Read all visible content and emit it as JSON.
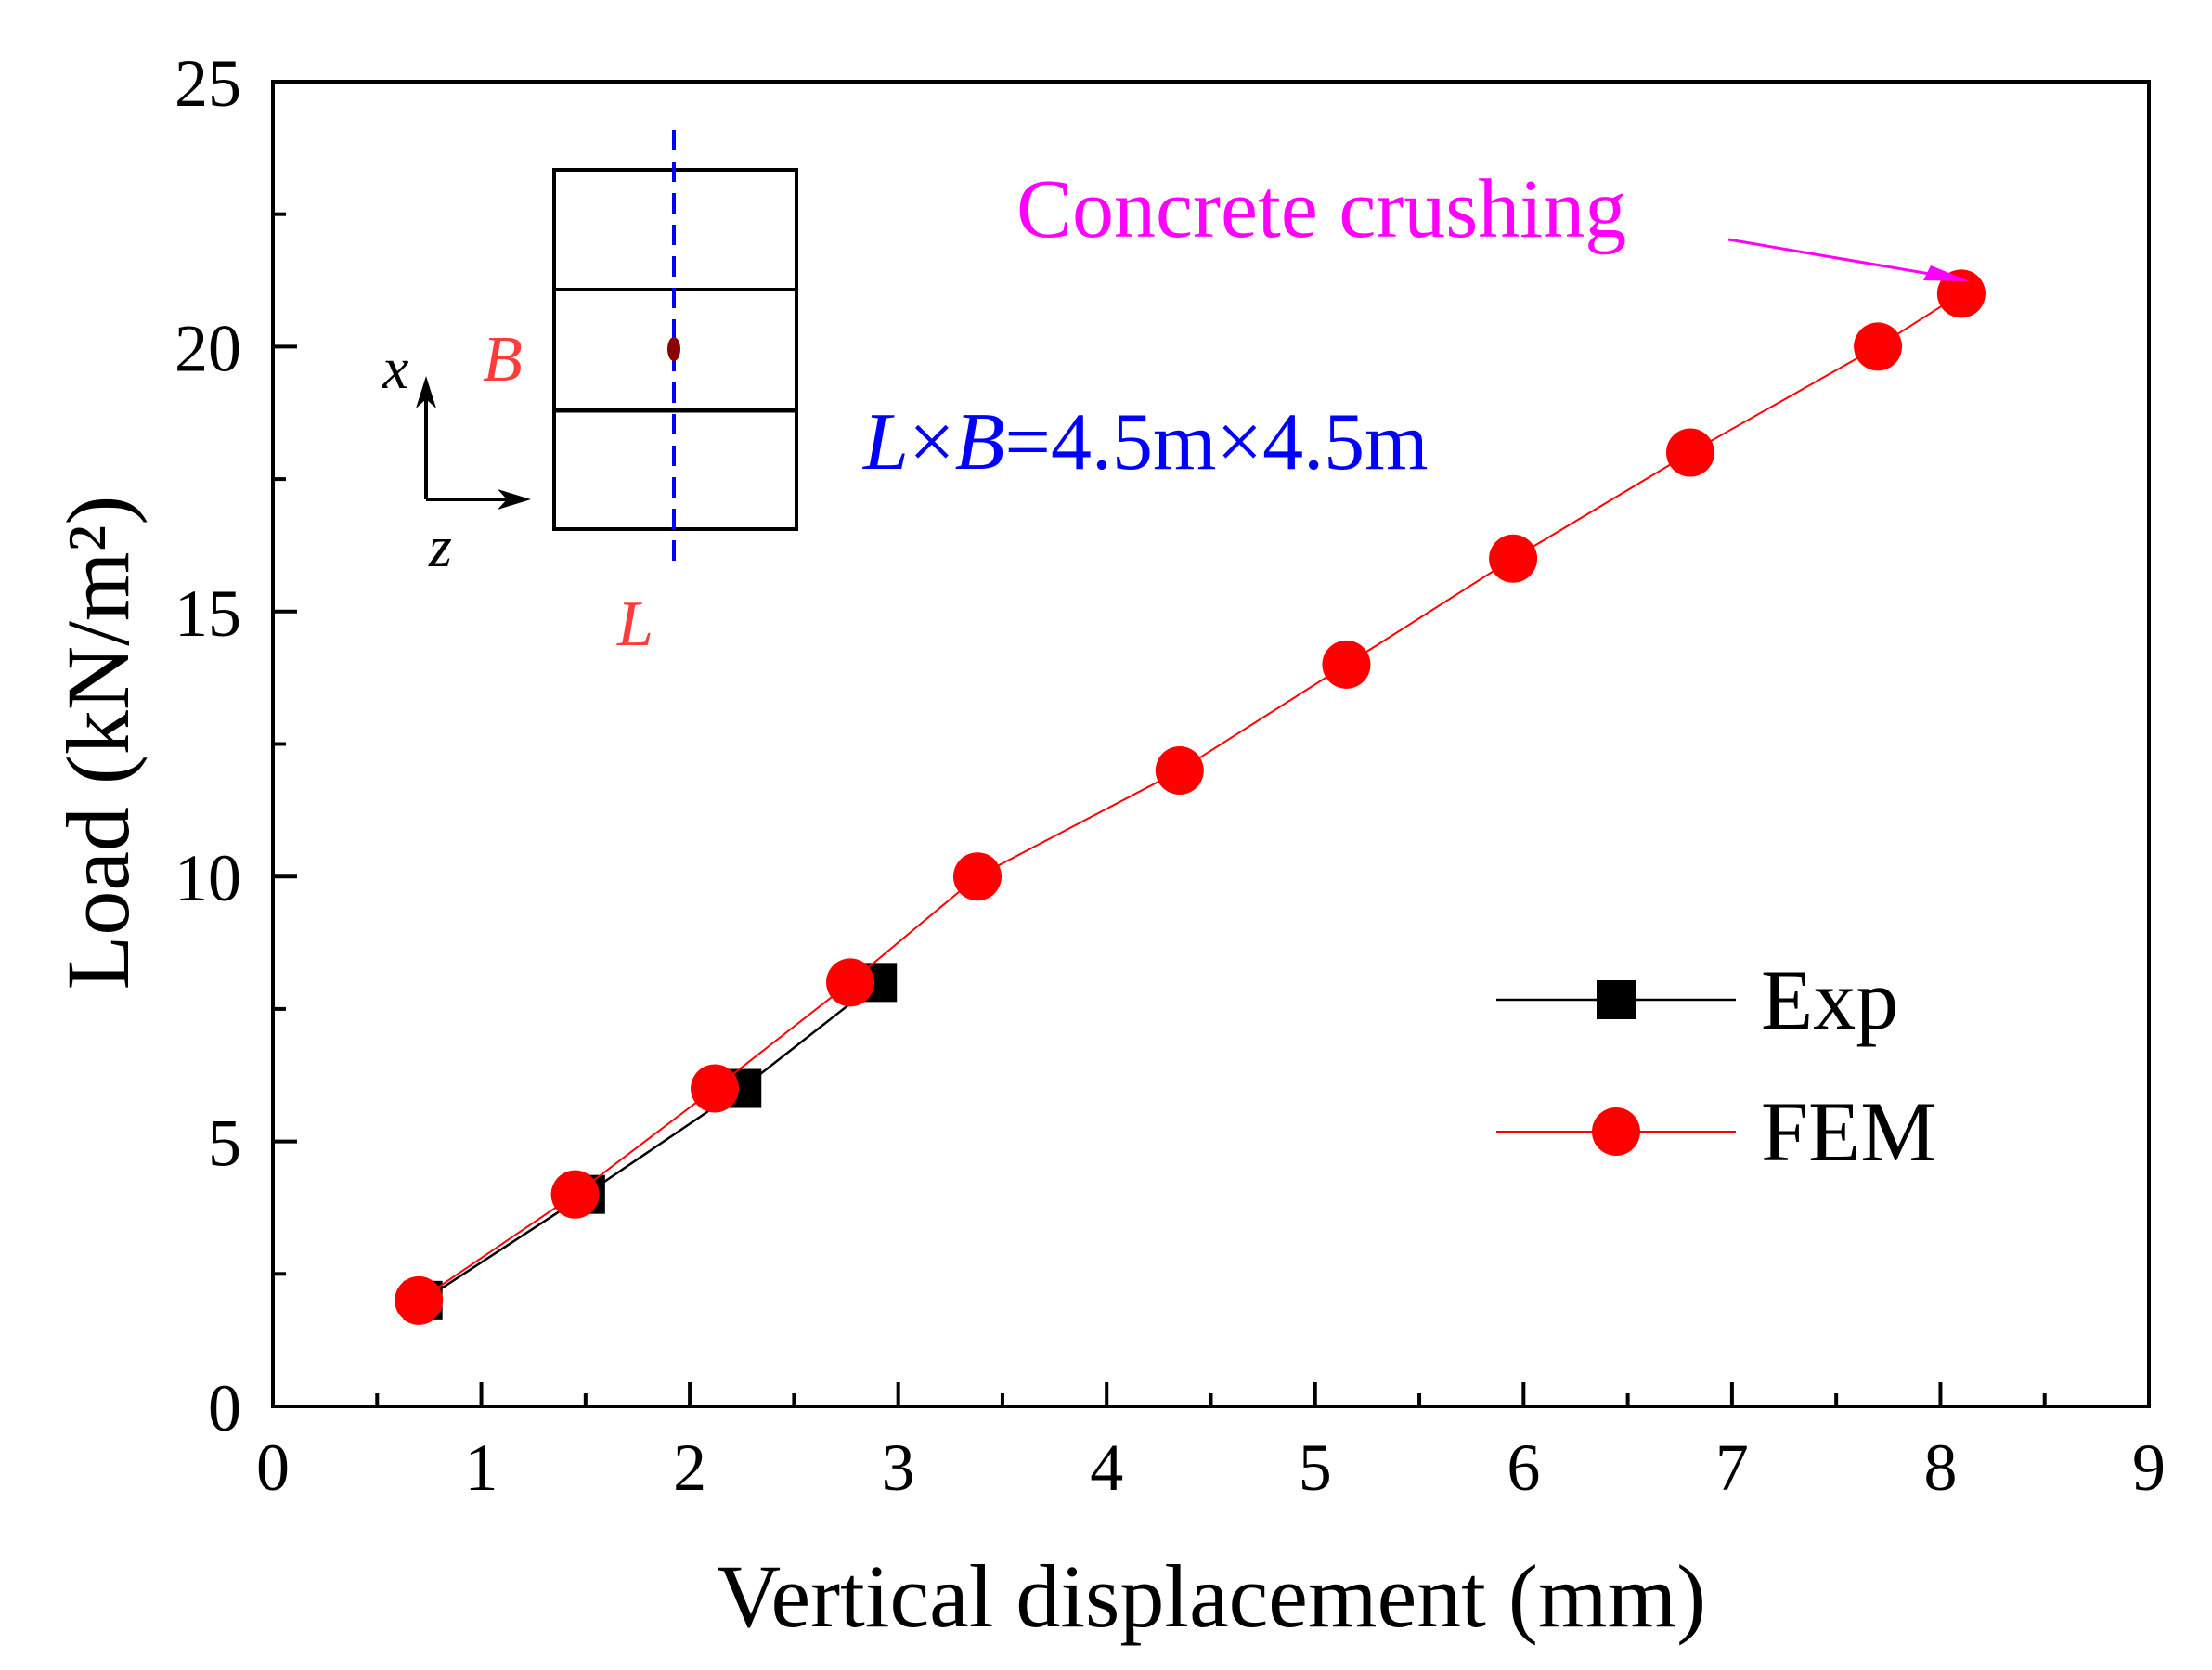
{
  "chart_data": {
    "type": "line",
    "title": "",
    "xlabel": "Vertical displacement (mm)",
    "ylabel": "Load (kN/m²)",
    "xlim": [
      0,
      9
    ],
    "ylim": [
      0,
      25
    ],
    "x_ticks": [
      0,
      1,
      2,
      3,
      4,
      5,
      6,
      7,
      8,
      9
    ],
    "y_ticks": [
      0,
      5,
      10,
      15,
      20,
      25
    ],
    "grid": false,
    "legend_position": "bottom-right",
    "series": [
      {
        "name": "Exp",
        "color": "#000000",
        "marker": "square",
        "x": [
          0.72,
          1.5,
          2.25,
          2.9
        ],
        "y": [
          2,
          4,
          6,
          8
        ]
      },
      {
        "name": "FEM",
        "color": "#ff0000",
        "marker": "circle",
        "x": [
          0.7,
          1.45,
          2.12,
          2.77,
          3.38,
          4.35,
          5.15,
          5.95,
          6.8,
          7.7,
          8.1
        ],
        "y": [
          2,
          4,
          6,
          8,
          10,
          12,
          14,
          16,
          18,
          20,
          21
        ]
      }
    ],
    "annotations": {
      "crushing_label": "Concrete crushing",
      "crushing_color": "#ff00ff",
      "dimension_label_l": "L",
      "dimension_label_times1": "×",
      "dimension_label_b": "B",
      "dimension_label_rest": "=4.5m×4.5m",
      "dimension_color": "#0000ff",
      "inset_b_label": "B",
      "inset_l_label": "L",
      "inset_label_color": "#ff3b3b",
      "axis_x_label": "x",
      "axis_z_label": "z",
      "point_color": "#8b0000",
      "centerline_color": "#0000ff"
    }
  }
}
